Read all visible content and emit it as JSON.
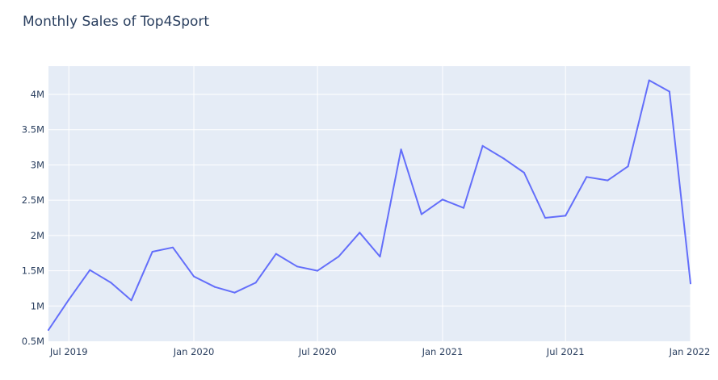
{
  "chart_data": {
    "type": "line",
    "title": "Monthly Sales of Top4Sport",
    "xlabel": "",
    "ylabel": "",
    "x": [
      "2019-06",
      "2019-07",
      "2019-08",
      "2019-09",
      "2019-10",
      "2019-11",
      "2019-12",
      "2020-01",
      "2020-02",
      "2020-03",
      "2020-04",
      "2020-05",
      "2020-06",
      "2020-07",
      "2020-08",
      "2020-09",
      "2020-10",
      "2020-11",
      "2020-12",
      "2021-01",
      "2021-02",
      "2021-03",
      "2021-04",
      "2021-05",
      "2021-06",
      "2021-07",
      "2021-08",
      "2021-09",
      "2021-10",
      "2021-11",
      "2021-12",
      "2022-01"
    ],
    "series": [
      {
        "values": [
          660000,
          1090000,
          1510000,
          1330000,
          1080000,
          1770000,
          1830000,
          1420000,
          1270000,
          1190000,
          1330000,
          1740000,
          1560000,
          1500000,
          1700000,
          2040000,
          1700000,
          3220000,
          2300000,
          2510000,
          2390000,
          3270000,
          3090000,
          2890000,
          2250000,
          2280000,
          2830000,
          2780000,
          2980000,
          4200000,
          4040000,
          1320000
        ]
      }
    ],
    "ylim": [
      500000,
      4400000
    ],
    "xlim": [
      "2019-06-01",
      "2022-01-01"
    ],
    "yticks": [
      {
        "value": 500000,
        "label": "0.5M"
      },
      {
        "value": 1000000,
        "label": "1M"
      },
      {
        "value": 1500000,
        "label": "1.5M"
      },
      {
        "value": 2000000,
        "label": "2M"
      },
      {
        "value": 2500000,
        "label": "2.5M"
      },
      {
        "value": 3000000,
        "label": "3M"
      },
      {
        "value": 3500000,
        "label": "3.5M"
      },
      {
        "value": 4000000,
        "label": "4M"
      }
    ],
    "xticks": [
      {
        "value": "2019-07-01",
        "label": "Jul 2019"
      },
      {
        "value": "2020-01-01",
        "label": "Jan 2020"
      },
      {
        "value": "2020-07-01",
        "label": "Jul 2020"
      },
      {
        "value": "2021-01-01",
        "label": "Jan 2021"
      },
      {
        "value": "2021-07-01",
        "label": "Jul 2021"
      },
      {
        "value": "2022-01-01",
        "label": "Jan 2022"
      }
    ],
    "grid": true,
    "colors": {
      "line": "#636efa",
      "plot_background": "#e5ecf6",
      "grid": "#ffffff",
      "text": "#2a3f5f"
    }
  }
}
